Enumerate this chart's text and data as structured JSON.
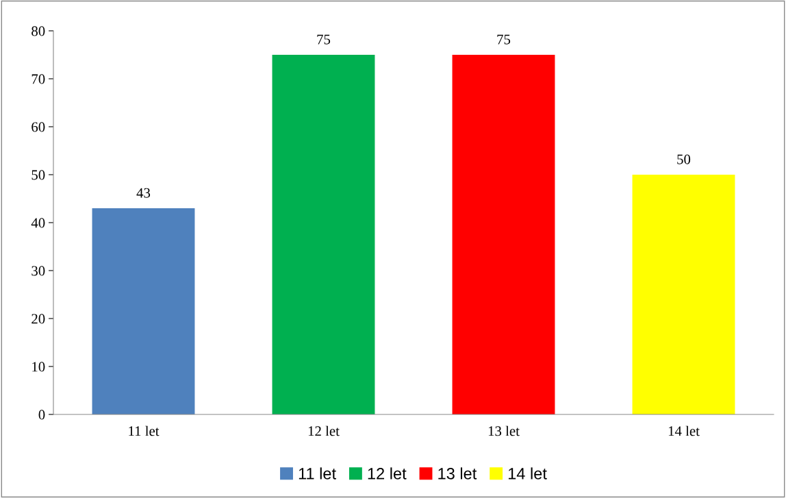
{
  "chart_data": {
    "type": "bar",
    "categories": [
      "11 let",
      "12 let",
      "13 let",
      "14 let"
    ],
    "series": [
      {
        "name": "11 let",
        "color": "#4f81bd",
        "values": [
          43,
          null,
          null,
          null
        ]
      },
      {
        "name": "12 let",
        "color": "#00b050",
        "values": [
          null,
          75,
          null,
          null
        ]
      },
      {
        "name": "13 let",
        "color": "#ff0000",
        "values": [
          null,
          null,
          75,
          null
        ]
      },
      {
        "name": "14 let",
        "color": "#ffff00",
        "values": [
          null,
          null,
          null,
          50
        ]
      }
    ],
    "ylim": [
      0,
      80
    ],
    "yticks": [
      0,
      10,
      20,
      30,
      40,
      50,
      60,
      70,
      80
    ],
    "data_labels": true,
    "grid": false,
    "legend": "bottom"
  }
}
